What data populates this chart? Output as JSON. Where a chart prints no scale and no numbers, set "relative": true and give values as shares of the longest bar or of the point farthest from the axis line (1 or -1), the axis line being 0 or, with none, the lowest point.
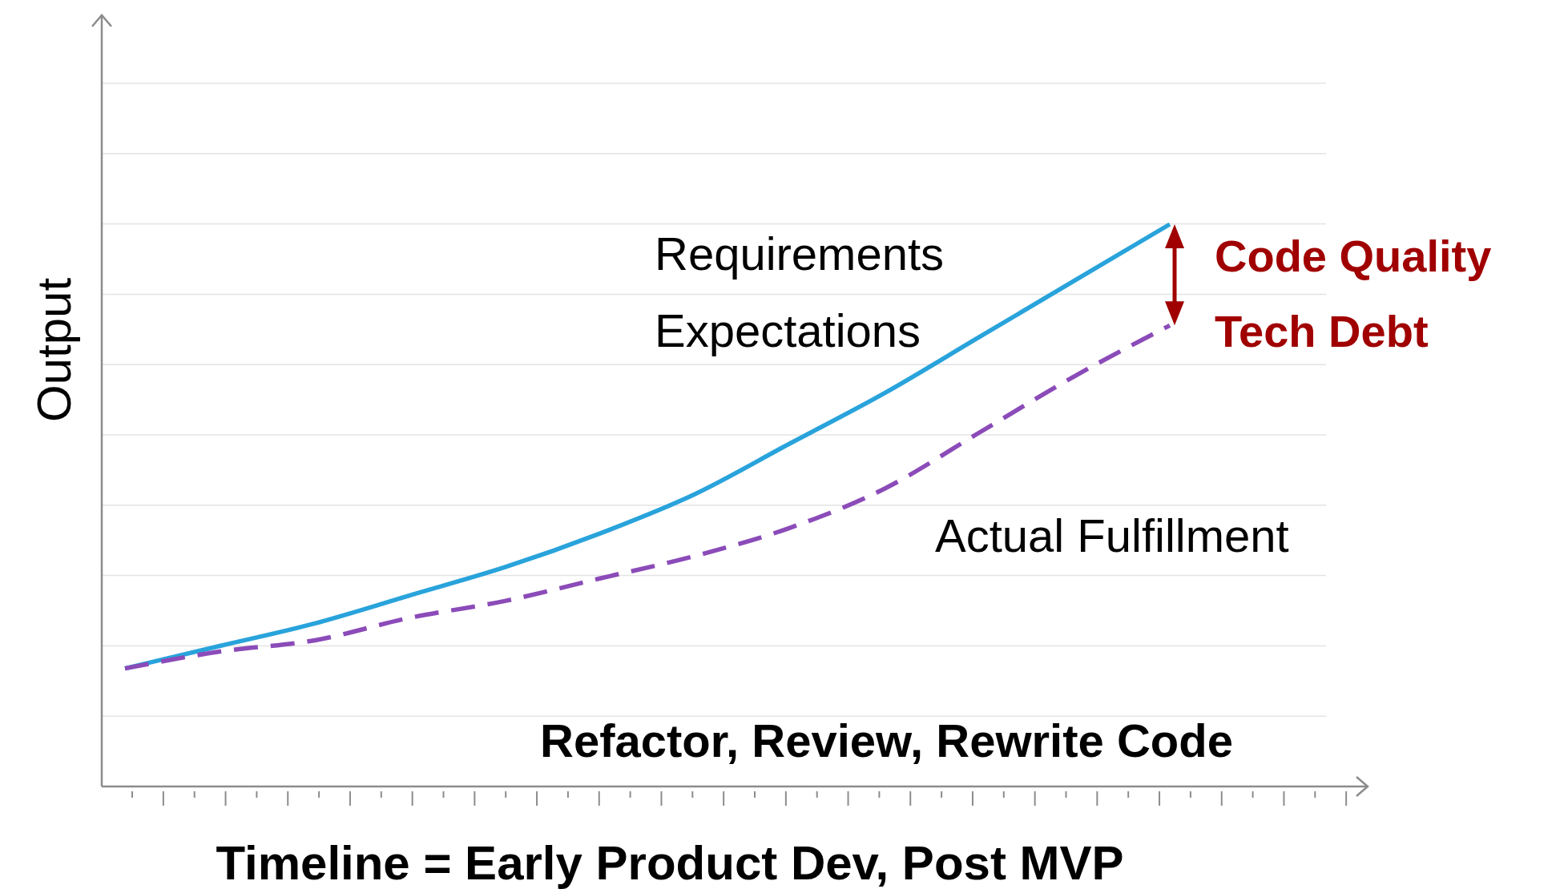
{
  "chart_data": {
    "type": "line",
    "relative": true,
    "xlabel": "Timeline = Early Product Dev, Post MVP",
    "ylabel": "Output",
    "grid": "y",
    "marker": "none",
    "categories": [
      null,
      null,
      null,
      null,
      null,
      null,
      null,
      null,
      null,
      null,
      null,
      null
    ],
    "series": [
      {
        "color": "#29a3db",
        "line_style": "solid",
        "values": [
          0.21,
          0.25,
          0.29,
          0.34,
          0.39,
          0.45,
          0.52,
          0.61,
          0.7,
          0.8,
          0.9,
          1
        ]
      },
      {
        "color": "#8b4bb8",
        "line_style": "dashed",
        "values": [
          0.21,
          0.24,
          0.26,
          0.3,
          0.33,
          0.37,
          0.41,
          0.46,
          0.53,
          0.63,
          0.73,
          0.82
        ]
      }
    ],
    "annotations": [
      "Requirements",
      "Expectations",
      "Code Quality",
      "Tech Debt",
      "Actual Fulfillment",
      "Refactor, Review, Rewrite Code"
    ]
  }
}
